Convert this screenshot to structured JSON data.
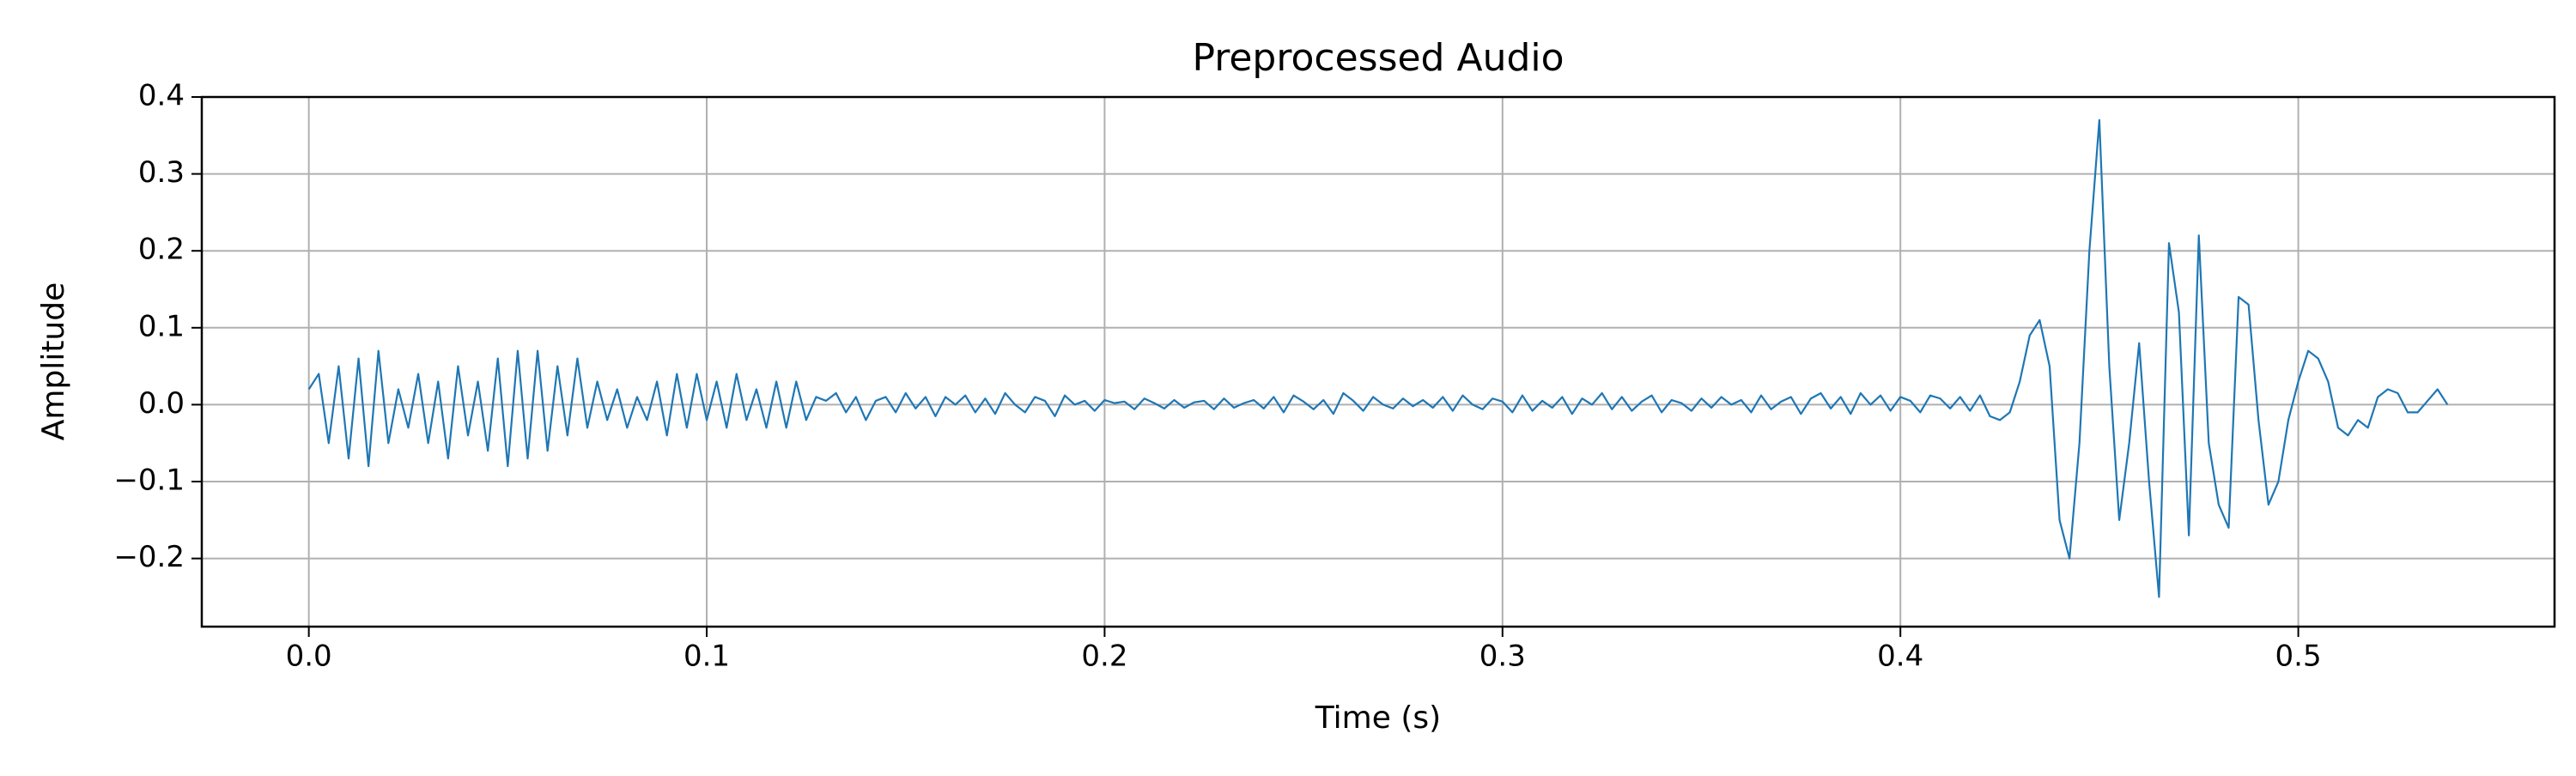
{
  "chart_data": {
    "type": "line",
    "title": "Preprocessed Audio",
    "x_label": "Time (s)",
    "y_label": "Amplitude",
    "color": "#1f77b4",
    "grid": true,
    "xlim": [
      -0.0269,
      0.5644
    ],
    "ylim": [
      -0.2886,
      0.4
    ],
    "xticks": [
      {
        "value": 0,
        "label": "0.0"
      },
      0.1,
      0.2,
      0.3,
      0.4,
      0.5
    ],
    "yticks": [
      {
        "value": -0.2,
        "label": "−0.2"
      },
      {
        "value": -0.1,
        "label": "−0.1"
      },
      {
        "value": 0,
        "label": "0.0"
      },
      0.1,
      0.2,
      0.3,
      0.4
    ],
    "x": [
      0,
      0.0025,
      0.005,
      0.0075,
      0.01,
      0.0125,
      0.015,
      0.0175,
      0.02,
      0.0225,
      0.025,
      0.0275,
      0.03,
      0.0325,
      0.035,
      0.0375,
      0.04,
      0.0425,
      0.045,
      0.0475,
      0.05,
      0.0525,
      0.055,
      0.0575,
      0.06,
      0.0625,
      0.065,
      0.0675,
      0.07,
      0.0725,
      0.075,
      0.0775,
      0.08,
      0.0825,
      0.085,
      0.0875,
      0.09,
      0.0925,
      0.095,
      0.0975,
      0.1,
      0.1025,
      0.105,
      0.1075,
      0.11,
      0.1125,
      0.115,
      0.1175,
      0.12,
      0.1225,
      0.125,
      0.1275,
      0.13,
      0.1325,
      0.135,
      0.1375,
      0.14,
      0.1425,
      0.145,
      0.1475,
      0.15,
      0.1525,
      0.155,
      0.1575,
      0.16,
      0.1625,
      0.165,
      0.1675,
      0.17,
      0.1725,
      0.175,
      0.1775,
      0.18,
      0.1825,
      0.185,
      0.1875,
      0.19,
      0.1925,
      0.195,
      0.1975,
      0.2,
      0.2025,
      0.205,
      0.2075,
      0.21,
      0.2125,
      0.215,
      0.2175,
      0.22,
      0.2225,
      0.225,
      0.2275,
      0.23,
      0.2325,
      0.235,
      0.2375,
      0.24,
      0.2425,
      0.245,
      0.2475,
      0.25,
      0.2525,
      0.255,
      0.2575,
      0.26,
      0.2625,
      0.265,
      0.2675,
      0.27,
      0.2725,
      0.275,
      0.2775,
      0.28,
      0.2825,
      0.285,
      0.2875,
      0.29,
      0.2925,
      0.295,
      0.2975,
      0.3,
      0.3025,
      0.305,
      0.3075,
      0.31,
      0.3125,
      0.315,
      0.3175,
      0.32,
      0.3225,
      0.325,
      0.3275,
      0.33,
      0.3325,
      0.335,
      0.3375,
      0.34,
      0.3425,
      0.345,
      0.3475,
      0.35,
      0.3525,
      0.355,
      0.3575,
      0.36,
      0.3625,
      0.365,
      0.3675,
      0.37,
      0.3725,
      0.375,
      0.3775,
      0.38,
      0.3825,
      0.385,
      0.3875,
      0.39,
      0.3925,
      0.395,
      0.3975,
      0.4,
      0.4025,
      0.405,
      0.4075,
      0.41,
      0.4125,
      0.415,
      0.4175,
      0.42,
      0.4225,
      0.425,
      0.4275,
      0.43,
      0.4325,
      0.435,
      0.4375,
      0.44,
      0.4425,
      0.445,
      0.4475,
      0.45,
      0.4525,
      0.455,
      0.4575,
      0.46,
      0.4625,
      0.465,
      0.4675,
      0.47,
      0.4725,
      0.475,
      0.4775,
      0.48,
      0.4825,
      0.485,
      0.4875,
      0.49,
      0.4925,
      0.495,
      0.4975,
      0.5,
      0.5025,
      0.505,
      0.5075,
      0.51,
      0.5125,
      0.515,
      0.5175,
      0.52,
      0.5225,
      0.525,
      0.5275,
      0.53,
      0.5325,
      0.535,
      0.5375
    ],
    "values": [
      0.02,
      0.04,
      -0.05,
      0.05,
      -0.07,
      0.06,
      -0.08,
      0.07,
      -0.05,
      0.02,
      -0.03,
      0.04,
      -0.05,
      0.03,
      -0.07,
      0.05,
      -0.04,
      0.03,
      -0.06,
      0.06,
      -0.08,
      0.07,
      -0.07,
      0.07,
      -0.06,
      0.05,
      -0.04,
      0.06,
      -0.03,
      0.03,
      -0.02,
      0.02,
      -0.03,
      0.01,
      -0.02,
      0.03,
      -0.04,
      0.04,
      -0.03,
      0.04,
      -0.02,
      0.03,
      -0.03,
      0.04,
      -0.02,
      0.02,
      -0.03,
      0.03,
      -0.03,
      0.03,
      -0.02,
      0.01,
      0.005,
      0.015,
      -0.01,
      0.01,
      -0.02,
      0.005,
      0.01,
      -0.01,
      0.015,
      -0.005,
      0.01,
      -0.015,
      0.01,
      0.0,
      0.012,
      -0.01,
      0.008,
      -0.012,
      0.015,
      0.0,
      -0.01,
      0.01,
      0.005,
      -0.015,
      0.012,
      0.0,
      0.005,
      -0.008,
      0.006,
      0.002,
      0.004,
      -0.006,
      0.008,
      0.002,
      -0.005,
      0.006,
      -0.004,
      0.003,
      0.005,
      -0.006,
      0.008,
      -0.004,
      0.002,
      0.006,
      -0.005,
      0.01,
      -0.01,
      0.012,
      0.004,
      -0.006,
      0.006,
      -0.012,
      0.015,
      0.005,
      -0.008,
      0.01,
      0.0,
      -0.005,
      0.008,
      -0.002,
      0.006,
      -0.004,
      0.01,
      -0.008,
      0.012,
      0.0,
      -0.006,
      0.008,
      0.004,
      -0.01,
      0.012,
      -0.008,
      0.005,
      -0.004,
      0.01,
      -0.012,
      0.008,
      0.0,
      0.015,
      -0.006,
      0.01,
      -0.008,
      0.004,
      0.012,
      -0.01,
      0.006,
      0.002,
      -0.008,
      0.008,
      -0.004,
      0.01,
      0.0,
      0.006,
      -0.01,
      0.012,
      -0.006,
      0.004,
      0.01,
      -0.012,
      0.008,
      0.015,
      -0.005,
      0.01,
      -0.012,
      0.015,
      0.0,
      0.012,
      -0.008,
      0.01,
      0.005,
      -0.01,
      0.012,
      0.008,
      -0.005,
      0.01,
      -0.008,
      0.012,
      -0.015,
      -0.02,
      -0.01,
      0.03,
      0.09,
      0.11,
      0.05,
      -0.15,
      -0.2,
      -0.05,
      0.2,
      0.37,
      0.05,
      -0.15,
      -0.05,
      0.08,
      -0.1,
      -0.25,
      0.21,
      0.12,
      -0.17,
      0.22,
      -0.05,
      -0.13,
      -0.16,
      0.14,
      0.13,
      -0.02,
      -0.13,
      -0.1,
      -0.02,
      0.03,
      0.07,
      0.06,
      0.03,
      -0.03,
      -0.04,
      -0.02,
      -0.03,
      0.01,
      0.02,
      0.015,
      -0.01,
      -0.01,
      0.005,
      0.02,
      0.0
    ]
  }
}
